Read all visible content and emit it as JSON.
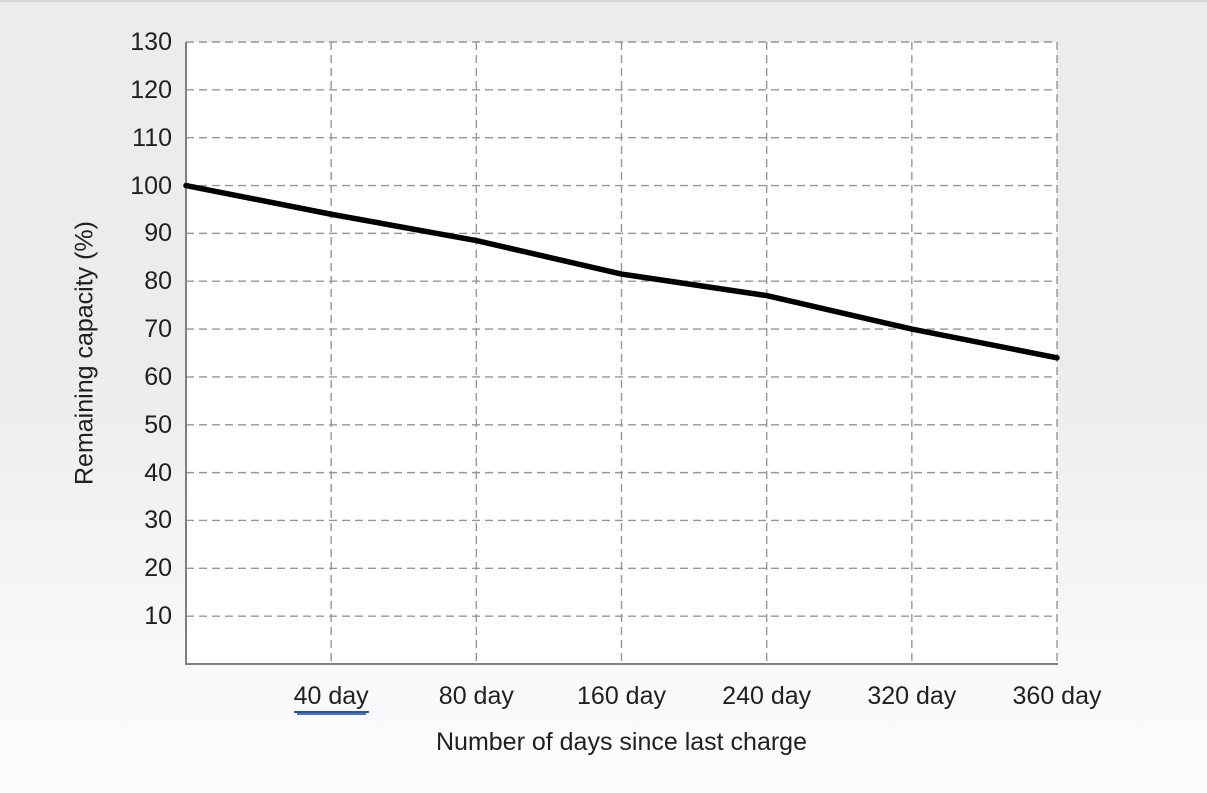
{
  "chart_data": {
    "type": "line",
    "title": "",
    "xlabel": "Number of days since last charge",
    "ylabel": "Remaining capacity (%)",
    "categories": [
      "",
      "40 day",
      "80 day",
      "160 day",
      "240 day",
      "320 day",
      "360 day"
    ],
    "series": [
      {
        "name": "Remaining capacity",
        "values": [
          100,
          94,
          88.5,
          81.5,
          77,
          70,
          64
        ]
      }
    ],
    "y_ticks": [
      10,
      20,
      30,
      40,
      50,
      60,
      70,
      80,
      90,
      100,
      110,
      120,
      130
    ],
    "ylim": [
      0,
      130
    ],
    "grid": "dashed horizontal and vertical gridlines",
    "legend_position": "none",
    "underlined_x_label": "40 day",
    "colors": {
      "series_line": "#000000",
      "gridline": "#969696",
      "axis_line": "#7f7f7f",
      "text": "#1f1f1f",
      "plot_background": "#ffffff",
      "underline_dark": "#2f5496",
      "underline_light": "#4472c4"
    }
  }
}
